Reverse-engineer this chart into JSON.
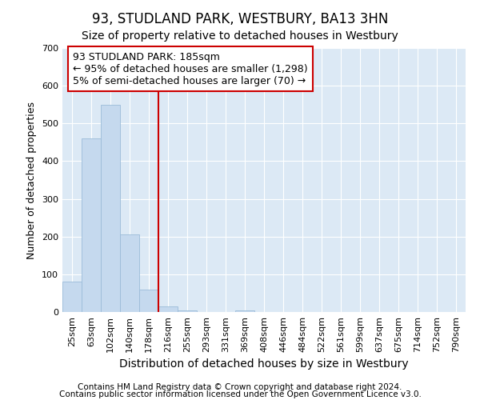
{
  "title": "93, STUDLAND PARK, WESTBURY, BA13 3HN",
  "subtitle": "Size of property relative to detached houses in Westbury",
  "xlabel": "Distribution of detached houses by size in Westbury",
  "ylabel": "Number of detached properties",
  "footnote1": "Contains HM Land Registry data © Crown copyright and database right 2024.",
  "footnote2": "Contains public sector information licensed under the Open Government Licence v3.0.",
  "bar_labels": [
    "25sqm",
    "63sqm",
    "102sqm",
    "140sqm",
    "178sqm",
    "216sqm",
    "255sqm",
    "293sqm",
    "331sqm",
    "369sqm",
    "408sqm",
    "446sqm",
    "484sqm",
    "522sqm",
    "561sqm",
    "599sqm",
    "637sqm",
    "675sqm",
    "714sqm",
    "752sqm",
    "790sqm"
  ],
  "bar_values": [
    80,
    460,
    550,
    205,
    60,
    15,
    5,
    0,
    0,
    5,
    0,
    0,
    0,
    0,
    0,
    0,
    0,
    0,
    0,
    0,
    0
  ],
  "bar_color": "#c5d9ee",
  "bar_edgecolor": "#9bbcd9",
  "highlight_color": "#cc0000",
  "annotation_line1": "93 STUDLAND PARK: 185sqm",
  "annotation_line2": "← 95% of detached houses are smaller (1,298)",
  "annotation_line3": "5% of semi-detached houses are larger (70) →",
  "ylim": [
    0,
    700
  ],
  "yticks": [
    0,
    100,
    200,
    300,
    400,
    500,
    600,
    700
  ],
  "fig_bg_color": "#ffffff",
  "plot_bg_color": "#dce9f5",
  "grid_color": "#ffffff",
  "title_fontsize": 12,
  "subtitle_fontsize": 10,
  "xlabel_fontsize": 10,
  "ylabel_fontsize": 9,
  "tick_fontsize": 8,
  "annotation_fontsize": 9,
  "footnote_fontsize": 7.5
}
